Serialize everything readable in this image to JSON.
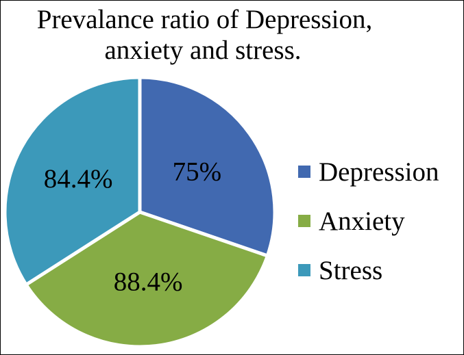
{
  "title": {
    "line1": "Prevalance ratio of Depression,",
    "line2": "anxiety and stress."
  },
  "legend": [
    {
      "label": "Depression",
      "color": "#4169B0"
    },
    {
      "label": "Anxiety",
      "color": "#86AC45"
    },
    {
      "label": "Stress",
      "color": "#3C99BA"
    }
  ],
  "chart_data": {
    "type": "pie",
    "title": "Prevalance ratio of Depression, anxiety and stress.",
    "categories": [
      "Depression",
      "Anxiety",
      "Stress"
    ],
    "values": [
      75,
      88.4,
      84.4
    ],
    "data_labels": [
      "75%",
      "88.4%",
      "84.4%"
    ],
    "colors": [
      "#4169B0",
      "#86AC45",
      "#3C99BA"
    ],
    "legend_position": "right",
    "start_angle": 0,
    "direction": "clockwise"
  }
}
